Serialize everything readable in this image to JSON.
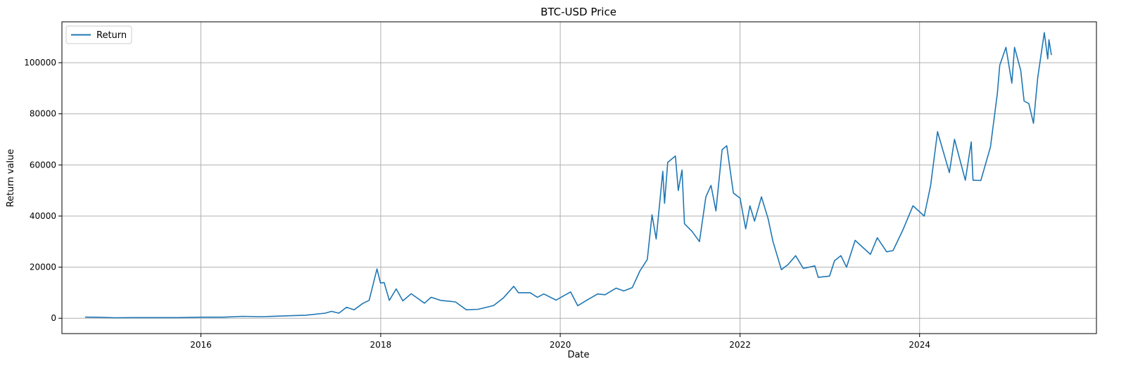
{
  "chart_data": {
    "type": "line",
    "title": "BTC-USD Price",
    "xlabel": "Date",
    "ylabel": "Return value",
    "xlim": [
      "2014-06-15",
      "2025-12-20"
    ],
    "ylim": [
      -6000,
      116000
    ],
    "x_ticks": [
      "2016",
      "2018",
      "2020",
      "2022",
      "2024"
    ],
    "y_ticks": [
      0,
      20000,
      40000,
      60000,
      80000,
      100000
    ],
    "grid": true,
    "legend_position": "top-left",
    "series": [
      {
        "name": "Return",
        "color": "#1f77b4",
        "points": [
          [
            "2014-09-17",
            457
          ],
          [
            "2014-11-15",
            380
          ],
          [
            "2015-01-14",
            200
          ],
          [
            "2015-04-01",
            240
          ],
          [
            "2015-07-01",
            260
          ],
          [
            "2015-10-01",
            240
          ],
          [
            "2016-01-01",
            430
          ],
          [
            "2016-04-01",
            420
          ],
          [
            "2016-06-18",
            760
          ],
          [
            "2016-09-01",
            600
          ],
          [
            "2017-01-01",
            998
          ],
          [
            "2017-03-01",
            1200
          ],
          [
            "2017-05-20",
            2000
          ],
          [
            "2017-06-15",
            2700
          ],
          [
            "2017-07-15",
            2000
          ],
          [
            "2017-08-15",
            4300
          ],
          [
            "2017-09-15",
            3300
          ],
          [
            "2017-10-20",
            5800
          ],
          [
            "2017-11-15",
            7000
          ],
          [
            "2017-12-17",
            19300
          ],
          [
            "2017-12-31",
            13800
          ],
          [
            "2018-01-15",
            14000
          ],
          [
            "2018-02-05",
            7000
          ],
          [
            "2018-03-05",
            11500
          ],
          [
            "2018-04-01",
            6800
          ],
          [
            "2018-05-05",
            9600
          ],
          [
            "2018-06-28",
            5900
          ],
          [
            "2018-07-25",
            8200
          ],
          [
            "2018-09-01",
            7000
          ],
          [
            "2018-11-01",
            6400
          ],
          [
            "2018-12-15",
            3300
          ],
          [
            "2019-02-01",
            3500
          ],
          [
            "2019-04-05",
            5000
          ],
          [
            "2019-05-15",
            8000
          ],
          [
            "2019-06-26",
            12500
          ],
          [
            "2019-07-15",
            10000
          ],
          [
            "2019-09-01",
            10000
          ],
          [
            "2019-09-30",
            8200
          ],
          [
            "2019-10-26",
            9500
          ],
          [
            "2019-12-15",
            7100
          ],
          [
            "2020-02-12",
            10300
          ],
          [
            "2020-03-12",
            4900
          ],
          [
            "2020-04-15",
            6900
          ],
          [
            "2020-06-01",
            9500
          ],
          [
            "2020-07-01",
            9200
          ],
          [
            "2020-08-15",
            11800
          ],
          [
            "2020-09-15",
            10700
          ],
          [
            "2020-10-20",
            12000
          ],
          [
            "2020-11-20",
            18500
          ],
          [
            "2020-12-20",
            23000
          ],
          [
            "2021-01-08",
            40500
          ],
          [
            "2021-01-25",
            31000
          ],
          [
            "2021-02-21",
            57500
          ],
          [
            "2021-02-28",
            45000
          ],
          [
            "2021-03-13",
            61000
          ],
          [
            "2021-04-13",
            63500
          ],
          [
            "2021-04-25",
            50000
          ],
          [
            "2021-05-10",
            58000
          ],
          [
            "2021-05-20",
            37000
          ],
          [
            "2021-06-20",
            34000
          ],
          [
            "2021-07-20",
            30000
          ],
          [
            "2021-08-15",
            47500
          ],
          [
            "2021-09-05",
            52000
          ],
          [
            "2021-09-25",
            42000
          ],
          [
            "2021-10-20",
            66000
          ],
          [
            "2021-11-08",
            67500
          ],
          [
            "2021-12-05",
            49000
          ],
          [
            "2022-01-01",
            47000
          ],
          [
            "2022-01-24",
            35000
          ],
          [
            "2022-02-10",
            44000
          ],
          [
            "2022-03-01",
            38000
          ],
          [
            "2022-03-29",
            47500
          ],
          [
            "2022-04-25",
            39000
          ],
          [
            "2022-05-15",
            30000
          ],
          [
            "2022-06-18",
            19000
          ],
          [
            "2022-07-15",
            21000
          ],
          [
            "2022-08-15",
            24500
          ],
          [
            "2022-09-15",
            19500
          ],
          [
            "2022-11-01",
            20500
          ],
          [
            "2022-11-15",
            16000
          ],
          [
            "2022-12-31",
            16500
          ],
          [
            "2023-01-20",
            22500
          ],
          [
            "2023-02-15",
            24500
          ],
          [
            "2023-03-10",
            20000
          ],
          [
            "2023-04-14",
            30500
          ],
          [
            "2023-06-15",
            25000
          ],
          [
            "2023-07-13",
            31500
          ],
          [
            "2023-08-20",
            26000
          ],
          [
            "2023-09-15",
            26500
          ],
          [
            "2023-10-25",
            34500
          ],
          [
            "2023-12-05",
            44000
          ],
          [
            "2024-01-20",
            40000
          ],
          [
            "2024-02-15",
            52000
          ],
          [
            "2024-03-14",
            73000
          ],
          [
            "2024-05-01",
            57000
          ],
          [
            "2024-05-22",
            70000
          ],
          [
            "2024-07-05",
            54000
          ],
          [
            "2024-07-29",
            69000
          ],
          [
            "2024-08-05",
            54000
          ],
          [
            "2024-09-06",
            53900
          ],
          [
            "2024-10-15",
            67000
          ],
          [
            "2024-11-12",
            88000
          ],
          [
            "2024-11-22",
            99000
          ],
          [
            "2024-12-17",
            106000
          ],
          [
            "2025-01-10",
            92000
          ],
          [
            "2025-01-21",
            106000
          ],
          [
            "2025-02-15",
            97000
          ],
          [
            "2025-03-01",
            85000
          ],
          [
            "2025-03-20",
            84000
          ],
          [
            "2025-04-08",
            76300
          ],
          [
            "2025-04-25",
            94000
          ],
          [
            "2025-05-22",
            111800
          ],
          [
            "2025-06-05",
            101500
          ],
          [
            "2025-06-10",
            109000
          ],
          [
            "2025-06-20",
            103000
          ]
        ]
      }
    ]
  }
}
